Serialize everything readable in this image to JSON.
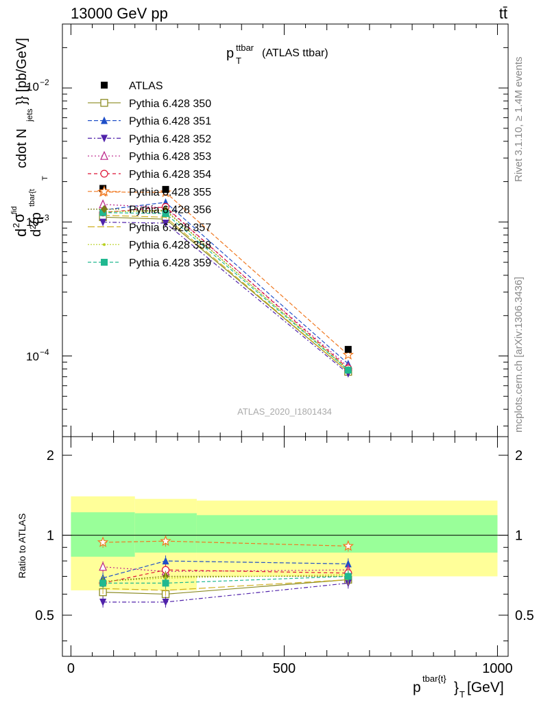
{
  "header": {
    "energy_label": "13000 GeV pp",
    "process_label": "tt̄",
    "title_main": "p",
    "title_sup": "ttbar",
    "title_sub": "T",
    "title_rest": "(ATLAS ttbar)",
    "analysis_id": "ATLAS_2020_I1801434",
    "side_rivet": "Rivet 3.1.10, ≥ 1.4M events",
    "side_mcplots": "mcplots.cern.ch [arXiv:1306.3436]"
  },
  "axes": {
    "ylabel_main_a": "d",
    "ylabel_main_b": "σ",
    "ylabel_main_c": "d",
    "ylabel_main_d": "{p",
    "ylabel_main_e": "cdot N",
    "ylabel_main_f": "jets",
    "ylabel_main_g": "}} [pb/GeV]",
    "ylabel_main_h": "tbar{t",
    "ylabel_main_i": "T",
    "ylabel_main_j": "fid",
    "ylabel_main_k": "2",
    "ylabel_main_l": "2",
    "ylabel_ratio": "Ratio to ATLAS",
    "xlabel_main": "p",
    "xlabel_sup": "tbar{t}",
    "xlabel_sub": "}",
    "xlabel_sub2": "T",
    "xlabel_unit": "[GeV]",
    "ytick_1e-2": "10",
    "ytick_1e-2_exp": "−2",
    "ytick_1e-3": "10",
    "ytick_1e-3_exp": "−3",
    "ytick_1e-4": "10",
    "ytick_1e-4_exp": "−4",
    "ratio_ticks": [
      "0.5",
      "1",
      "2"
    ],
    "x_ticks": [
      "0",
      "500",
      "1000"
    ]
  },
  "chart_data": {
    "type": "line",
    "x": [
      75,
      222,
      650
    ],
    "x_bins": [
      [
        0,
        150
      ],
      [
        150,
        295
      ],
      [
        295,
        1000
      ]
    ],
    "xlim": [
      -20,
      1025
    ],
    "ylim_main": [
      2.5e-05,
      0.03
    ],
    "ylim_ratio": [
      0.35,
      2.35
    ],
    "y_log": true,
    "reference": {
      "name": "ATLAS",
      "values": [
        0.00178,
        0.00175,
        0.000112
      ],
      "band_inner": [
        [
          0.83,
          1.22
        ],
        [
          0.86,
          1.21
        ],
        [
          0.86,
          1.19
        ]
      ],
      "band_outer": [
        [
          0.62,
          1.4
        ],
        [
          0.62,
          1.37
        ],
        [
          0.7,
          1.35
        ]
      ]
    },
    "series": [
      {
        "name": "Pythia 6.428 350",
        "color": "#8b8b22",
        "marker": "square-open",
        "dash": "",
        "ratio": [
          0.61,
          0.6,
          0.68
        ]
      },
      {
        "name": "Pythia 6.428 351",
        "color": "#1f4fc8",
        "marker": "triangle-up",
        "dash": "6,3",
        "ratio": [
          0.69,
          0.8,
          0.78
        ]
      },
      {
        "name": "Pythia 6.428 352",
        "color": "#5022aa",
        "marker": "triangle-down",
        "dash": "6,3,2,3",
        "ratio": [
          0.56,
          0.56,
          0.66
        ]
      },
      {
        "name": "Pythia 6.428 353",
        "color": "#bb2288",
        "marker": "triangle-open",
        "dash": "2,3",
        "ratio": [
          0.76,
          0.73,
          0.74
        ]
      },
      {
        "name": "Pythia 6.428 354",
        "color": "#dd1133",
        "marker": "circle-open",
        "dash": "5,4",
        "ratio": [
          0.66,
          0.74,
          0.72
        ]
      },
      {
        "name": "Pythia 6.428 355",
        "color": "#f07820",
        "marker": "star-open",
        "dash": "6,3",
        "ratio": [
          0.94,
          0.95,
          0.91
        ]
      },
      {
        "name": "Pythia 6.428 356",
        "color": "#7a7a18",
        "marker": "diamond",
        "dash": "2,2",
        "ratio": [
          0.67,
          0.7,
          0.7
        ]
      },
      {
        "name": "Pythia 6.428 357",
        "color": "#d0b020",
        "marker": "none",
        "dash": "10,4",
        "ratio": [
          0.63,
          0.62,
          0.68
        ]
      },
      {
        "name": "Pythia 6.428 358",
        "color": "#b8d020",
        "marker": "dot",
        "dash": "2,2",
        "ratio": [
          0.67,
          0.69,
          0.71
        ]
      },
      {
        "name": "Pythia 6.428 359",
        "color": "#20b890",
        "marker": "square",
        "dash": "5,3",
        "ratio": [
          0.66,
          0.66,
          0.7
        ]
      }
    ],
    "legend_placement": "top-left"
  }
}
